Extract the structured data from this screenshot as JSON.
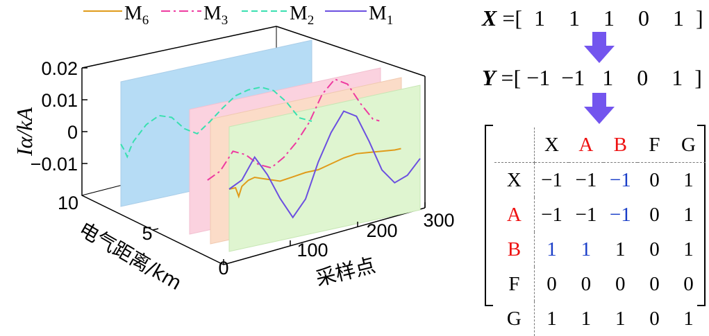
{
  "chart_data": {
    "type": "line",
    "projection": "3d",
    "ylabel": "Iα/kA",
    "xlabel": "采样点",
    "zlabel": "电气距离/km",
    "xlim": [
      0,
      300
    ],
    "ylim": [
      -0.02,
      0.02
    ],
    "zlim": [
      0,
      10
    ],
    "x_ticks": [
      "0",
      "100",
      "200",
      "300"
    ],
    "y_ticks": [
      "−0.01",
      "0",
      "0.01",
      "0.02"
    ],
    "z_ticks": [
      "5",
      "10"
    ],
    "legend_position": "top",
    "series": [
      {
        "name": "M6",
        "color": "#e09b1a",
        "dash": "solid",
        "plane_distance_km": 0,
        "x": [
          0,
          10,
          15,
          20,
          30,
          40,
          60,
          80,
          100,
          120,
          140,
          160,
          180,
          200,
          220,
          240,
          260,
          270
        ],
        "y": [
          0.0,
          0.0,
          -0.003,
          0.0,
          0.0015,
          0.002,
          0.0005,
          -0.001,
          -0.0005,
          0.0,
          0.0,
          0.001,
          0.002,
          0.0025,
          0.002,
          0.0015,
          0.001,
          0.001
        ]
      },
      {
        "name": "M3",
        "color": "#ee3aa0",
        "dash": "dashdot",
        "plane_distance_km": 2,
        "x": [
          0,
          20,
          40,
          60,
          80,
          100,
          120,
          140,
          160,
          180,
          200,
          220,
          240,
          260,
          270
        ],
        "y": [
          0.0,
          0.002,
          0.0075,
          0.0055,
          0.0015,
          -0.0005,
          0.002,
          0.006,
          0.0115,
          0.0195,
          0.0235,
          0.021,
          0.014,
          0.008,
          0.007
        ]
      },
      {
        "name": "M2",
        "color": "#39e0b0",
        "dash": "dashed",
        "plane_distance_km": 10,
        "x": [
          0,
          5,
          10,
          15,
          20,
          40,
          60,
          80,
          100,
          120,
          140,
          160,
          180,
          200,
          220,
          240,
          260,
          280,
          300
        ],
        "y": [
          0.0,
          -0.002,
          -0.0045,
          -0.002,
          0.0,
          0.0045,
          0.0065,
          0.005,
          0.0005,
          -0.002,
          0.001,
          0.0045,
          0.0075,
          0.0085,
          0.0085,
          0.0065,
          0.002,
          -0.004,
          -0.006
        ]
      },
      {
        "name": "M1",
        "color": "#6b4fe0",
        "dash": "solid",
        "plane_distance_km": 0,
        "x": [
          0,
          20,
          40,
          60,
          80,
          100,
          120,
          140,
          160,
          180,
          200,
          220,
          240,
          260,
          280,
          300
        ],
        "y": [
          0.0,
          0.002,
          0.0085,
          0.002,
          -0.0065,
          -0.0135,
          -0.0085,
          0.0025,
          0.011,
          0.017,
          0.0145,
          0.0055,
          -0.0045,
          -0.0095,
          -0.008,
          -0.0035
        ]
      }
    ]
  },
  "legend": {
    "labels": [
      "M",
      "M",
      "M",
      "M"
    ],
    "subscripts": [
      "6",
      "3",
      "2",
      "1"
    ]
  },
  "vector_x": {
    "name": "X",
    "eq": "=[",
    "values": [
      "1",
      "1",
      "1",
      "0",
      "1"
    ],
    "close": "]"
  },
  "vector_y": {
    "name": "Y",
    "eq": "=[",
    "values": [
      "−1",
      "−1",
      "1",
      "0",
      "1"
    ],
    "close": "]"
  },
  "arrow_color": "#7355ee",
  "matrix": {
    "col_headers": [
      "X",
      "A",
      "B",
      "F",
      "G"
    ],
    "row_headers": [
      "X",
      "A",
      "B",
      "F",
      "G"
    ],
    "rows": [
      [
        "−1",
        "−1",
        "−1",
        "0",
        "1"
      ],
      [
        "−1",
        "−1",
        "−1",
        "0",
        "1"
      ],
      [
        "1",
        "1",
        "1",
        "0",
        "1"
      ],
      [
        "0",
        "0",
        "0",
        "0",
        "0"
      ],
      [
        "1",
        "1",
        "1",
        "0",
        "1"
      ]
    ],
    "red_labels": [
      "A",
      "B"
    ],
    "highlight_cells": [
      [
        0,
        2
      ],
      [
        1,
        2
      ],
      [
        2,
        0
      ],
      [
        2,
        1
      ]
    ],
    "highlight_color": "#1a3ec8",
    "label_color": "#ee1111"
  }
}
